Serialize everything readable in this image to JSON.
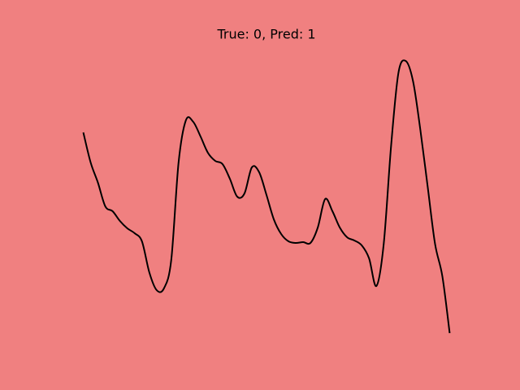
{
  "chart_data": {
    "type": "line",
    "title": "True: 0, Pred: 1",
    "background": "#f08080",
    "x": [
      0,
      1,
      2,
      3,
      4,
      5,
      6,
      7,
      8,
      9,
      10,
      11,
      12,
      13,
      14,
      15,
      16,
      17,
      18,
      19,
      20,
      21,
      22,
      23,
      24,
      25,
      26,
      27,
      28,
      29,
      30,
      31,
      32,
      33,
      34,
      35,
      36,
      37,
      38,
      39,
      40,
      41,
      42,
      43,
      44,
      45,
      46,
      47,
      48,
      49,
      50
    ],
    "series": [
      {
        "color": "#000000",
        "values": [
          2.59,
          2.22,
          1.97,
          1.68,
          1.62,
          1.5,
          1.41,
          1.35,
          1.25,
          0.87,
          0.65,
          0.67,
          1.02,
          2.22,
          2.74,
          2.72,
          2.54,
          2.34,
          2.24,
          2.2,
          2.02,
          1.8,
          1.84,
          2.16,
          2.1,
          1.82,
          1.52,
          1.34,
          1.25,
          1.23,
          1.24,
          1.23,
          1.42,
          1.77,
          1.62,
          1.42,
          1.3,
          1.26,
          1.2,
          1.04,
          0.7,
          1.22,
          2.42,
          3.32,
          3.47,
          3.22,
          2.62,
          1.92,
          1.22,
          0.82,
          0.12
        ]
      }
    ],
    "xlim": [
      -2.5,
      52.5
    ],
    "ylim": [
      0,
      3.64
    ]
  }
}
